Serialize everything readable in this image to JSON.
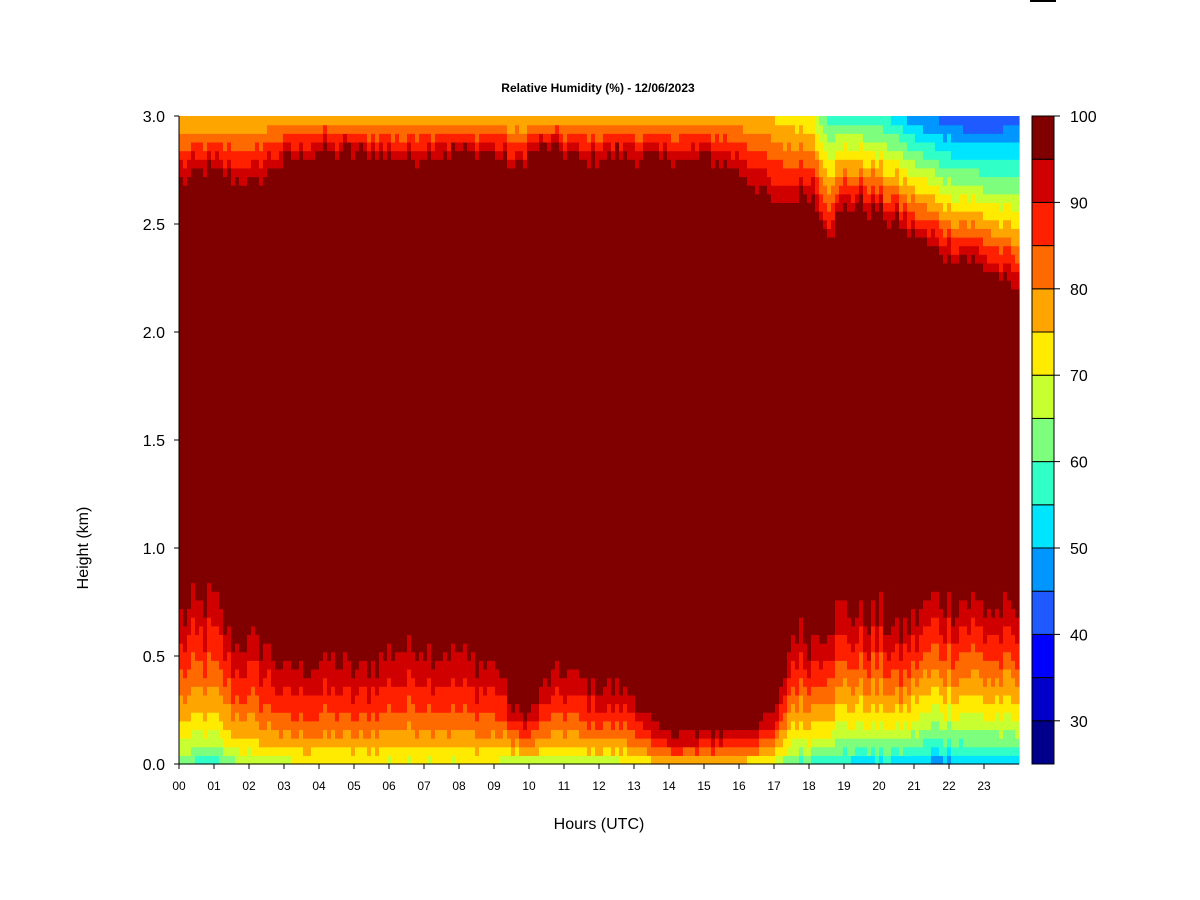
{
  "chart_data": {
    "type": "heatmap",
    "title": "Relative Humidity (%) - 12/06/2023",
    "xlabel": "Hours (UTC)",
    "ylabel": "Height (km)",
    "x_ticks": [
      "00",
      "01",
      "02",
      "03",
      "04",
      "05",
      "06",
      "07",
      "08",
      "09",
      "10",
      "11",
      "12",
      "13",
      "14",
      "15",
      "16",
      "17",
      "18",
      "19",
      "20",
      "21",
      "22",
      "23"
    ],
    "x_range": [
      0,
      24
    ],
    "y_ticks": [
      "0.0",
      "0.5",
      "1.0",
      "1.5",
      "2.0",
      "2.5",
      "3.0"
    ],
    "y_range": [
      0,
      3
    ],
    "colorbar": {
      "range": [
        25,
        100
      ],
      "step": 5,
      "labels": [
        "30",
        "40",
        "50",
        "60",
        "70",
        "80",
        "90",
        "100"
      ],
      "colors": [
        "#00008b",
        "#0000c8",
        "#0000ff",
        "#1e5aff",
        "#0096ff",
        "#00e5ff",
        "#30ffc8",
        "#7dff7d",
        "#c8ff30",
        "#ffeb00",
        "#ffa500",
        "#ff6a00",
        "#ff2000",
        "#d00000",
        "#800000"
      ]
    },
    "profiles": {
      "hours": [
        0,
        0.5,
        1,
        1.5,
        2,
        2.5,
        3,
        3.5,
        4,
        4.5,
        5,
        5.5,
        6,
        6.5,
        7,
        7.5,
        8,
        8.5,
        9,
        9.5,
        10,
        10.5,
        11,
        11.5,
        12,
        12.5,
        13,
        13.5,
        14,
        14.5,
        15,
        15.5,
        16,
        16.5,
        17,
        17.5,
        18,
        18.5,
        19,
        19.5,
        20,
        20.5,
        21,
        21.5,
        22,
        22.5,
        23,
        23.8
      ],
      "lower_transition_km": [
        0.85,
        0.9,
        0.9,
        0.7,
        0.72,
        0.7,
        0.55,
        0.6,
        0.6,
        0.62,
        0.55,
        0.6,
        0.68,
        0.7,
        0.72,
        0.68,
        0.65,
        0.6,
        0.62,
        0.3,
        0.3,
        0.5,
        0.55,
        0.5,
        0.45,
        0.45,
        0.4,
        0.22,
        0.2,
        0.18,
        0.2,
        0.2,
        0.22,
        0.25,
        0.3,
        0.75,
        0.7,
        0.8,
        0.85,
        0.8,
        0.82,
        0.7,
        0.8,
        0.9,
        0.88,
        0.9,
        0.85,
        0.8
      ],
      "surface_min_rh": [
        58,
        55,
        55,
        60,
        62,
        65,
        65,
        66,
        66,
        66,
        66,
        66,
        66,
        66,
        66,
        66,
        66,
        66,
        66,
        60,
        62,
        62,
        64,
        64,
        64,
        64,
        66,
        68,
        70,
        70,
        70,
        68,
        68,
        66,
        62,
        55,
        55,
        52,
        50,
        48,
        50,
        48,
        46,
        44,
        44,
        46,
        46,
        46
      ],
      "upper_transition_km": [
        2.65,
        2.7,
        2.7,
        2.65,
        2.62,
        2.7,
        2.75,
        2.8,
        2.8,
        2.8,
        2.8,
        2.78,
        2.78,
        2.75,
        2.8,
        2.8,
        2.8,
        2.8,
        2.8,
        2.7,
        2.8,
        2.82,
        2.78,
        2.75,
        2.78,
        2.8,
        2.78,
        2.75,
        2.78,
        2.75,
        2.78,
        2.75,
        2.7,
        2.62,
        2.5,
        2.55,
        2.6,
        2.4,
        2.55,
        2.55,
        2.5,
        2.45,
        2.4,
        2.35,
        2.3,
        2.3,
        2.25,
        2.15
      ],
      "top_min_rh": [
        74,
        74,
        74,
        74,
        75,
        76,
        76,
        76,
        76,
        76,
        76,
        76,
        76,
        76,
        76,
        76,
        76,
        76,
        76,
        74,
        74,
        76,
        76,
        76,
        76,
        76,
        76,
        76,
        76,
        76,
        76,
        76,
        76,
        76,
        74,
        72,
        70,
        58,
        58,
        56,
        55,
        52,
        46,
        44,
        42,
        40,
        40,
        42
      ]
    }
  }
}
